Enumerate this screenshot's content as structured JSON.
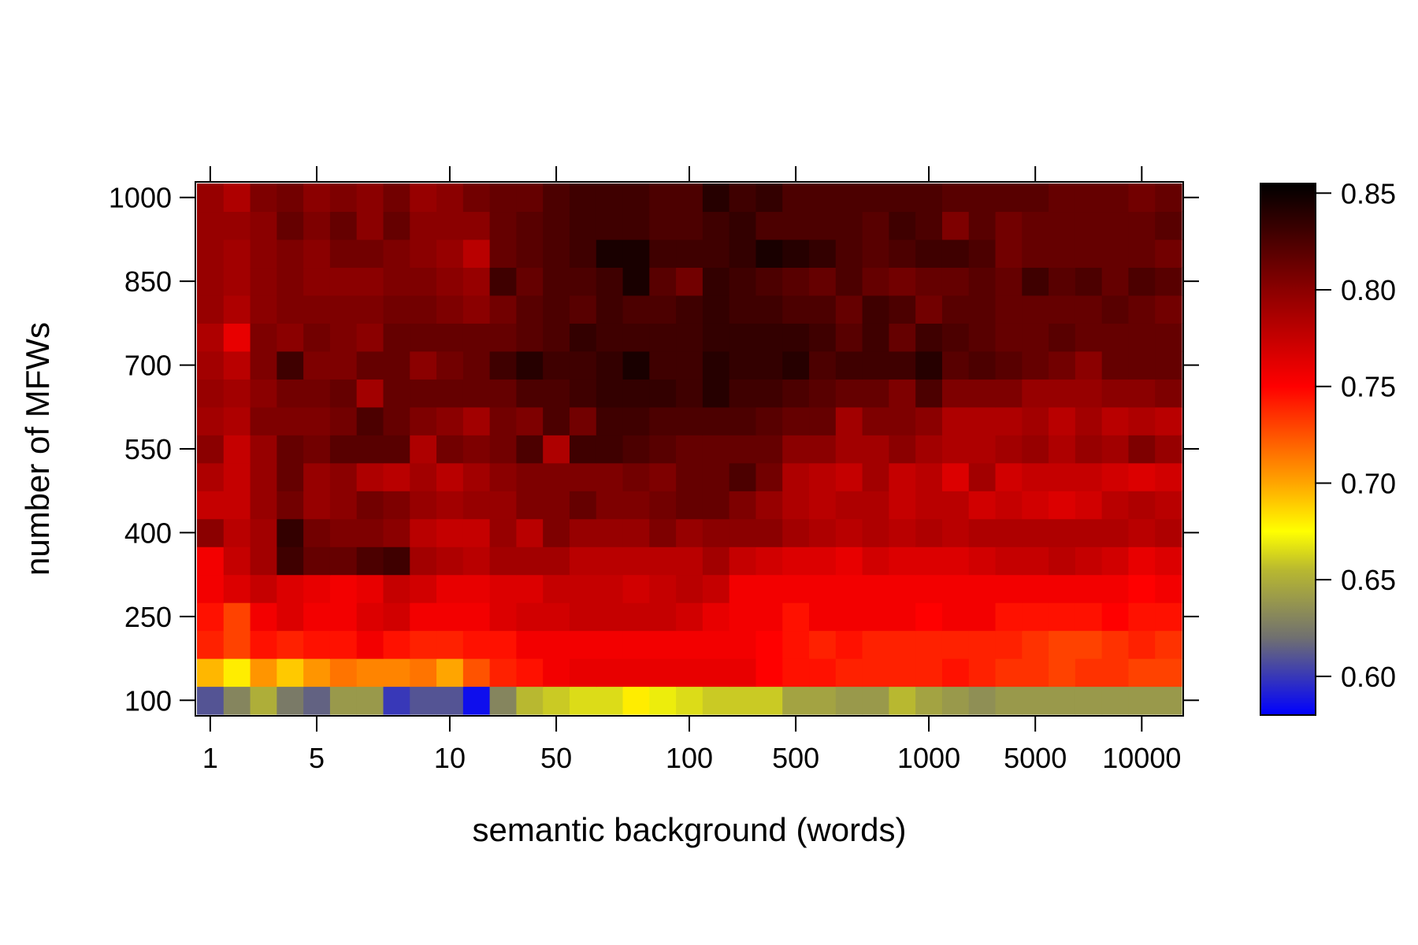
{
  "chart_data": {
    "type": "heatmap",
    "title": "",
    "xlabel": "semantic background (words)",
    "ylabel": "number of MFWs",
    "x_tick_labels": [
      "1",
      "5",
      "10",
      "50",
      "100",
      "500",
      "1000",
      "5000",
      "10000"
    ],
    "x_tick_col_index": [
      0,
      4,
      9,
      13,
      18,
      22,
      27,
      31,
      35
    ],
    "y_tick_labels": [
      "100",
      "250",
      "400",
      "550",
      "700",
      "850",
      "1000"
    ],
    "y_tick_row_index": [
      0,
      3,
      6,
      9,
      12,
      15,
      18
    ],
    "n_columns": 37,
    "n_rows": 19,
    "colorbar": {
      "range": [
        0.58,
        0.855
      ],
      "tick_labels": [
        "0.60",
        "0.65",
        "0.70",
        "0.75",
        "0.80",
        "0.85"
      ],
      "tick_values": [
        0.6,
        0.65,
        0.7,
        0.75,
        0.8,
        0.85
      ],
      "colors": [
        {
          "v": 0.58,
          "c": "#0000ff"
        },
        {
          "v": 0.62,
          "c": "#707070"
        },
        {
          "v": 0.655,
          "c": "#b8b830"
        },
        {
          "v": 0.675,
          "c": "#ffff00"
        },
        {
          "v": 0.7,
          "c": "#ffa500"
        },
        {
          "v": 0.75,
          "c": "#ff0000"
        },
        {
          "v": 0.8,
          "c": "#8b0000"
        },
        {
          "v": 0.855,
          "c": "#000000"
        }
      ]
    },
    "row_profiles": [
      {
        "row": 0,
        "mfw": "100",
        "values": [
          0.61,
          0.63,
          0.65,
          0.625,
          0.615,
          0.64,
          0.64,
          0.6,
          0.61,
          0.61,
          0.585,
          0.63,
          0.655,
          0.66,
          0.665,
          0.665,
          0.68,
          0.67,
          0.665,
          0.66,
          0.66,
          0.66,
          0.645,
          0.645,
          0.64,
          0.64,
          0.655,
          0.645,
          0.64,
          0.635,
          0.64,
          0.64,
          0.64,
          0.64,
          0.64,
          0.64,
          0.64
        ]
      },
      {
        "row": 1,
        "mfw": "150",
        "values": [
          0.695,
          0.68,
          0.705,
          0.69,
          0.705,
          0.715,
          0.71,
          0.71,
          0.715,
          0.7,
          0.725,
          0.74,
          0.745,
          0.755,
          0.76,
          0.76,
          0.76,
          0.76,
          0.76,
          0.76,
          0.76,
          0.75,
          0.745,
          0.745,
          0.74,
          0.74,
          0.74,
          0.74,
          0.745,
          0.74,
          0.735,
          0.735,
          0.73,
          0.735,
          0.735,
          0.73,
          0.73
        ]
      },
      {
        "row": 2,
        "mfw": "200",
        "values": [
          0.74,
          0.73,
          0.745,
          0.74,
          0.745,
          0.745,
          0.755,
          0.745,
          0.74,
          0.74,
          0.745,
          0.745,
          0.755,
          0.755,
          0.755,
          0.755,
          0.755,
          0.755,
          0.755,
          0.755,
          0.755,
          0.75,
          0.745,
          0.74,
          0.745,
          0.74,
          0.74,
          0.74,
          0.74,
          0.74,
          0.74,
          0.735,
          0.73,
          0.73,
          0.735,
          0.74,
          0.735
        ]
      },
      {
        "row": 3,
        "mfw": "250",
        "values": [
          0.745,
          0.73,
          0.755,
          0.765,
          0.755,
          0.755,
          0.765,
          0.77,
          0.755,
          0.755,
          0.755,
          0.765,
          0.77,
          0.77,
          0.775,
          0.775,
          0.775,
          0.775,
          0.77,
          0.76,
          0.755,
          0.755,
          0.745,
          0.755,
          0.755,
          0.755,
          0.755,
          0.75,
          0.755,
          0.755,
          0.745,
          0.745,
          0.745,
          0.745,
          0.75,
          0.745,
          0.745
        ]
      },
      {
        "row": 4,
        "mfw": "300",
        "values": [
          0.755,
          0.765,
          0.775,
          0.765,
          0.76,
          0.755,
          0.76,
          0.775,
          0.77,
          0.76,
          0.76,
          0.765,
          0.765,
          0.775,
          0.775,
          0.775,
          0.77,
          0.775,
          0.78,
          0.775,
          0.755,
          0.755,
          0.755,
          0.755,
          0.755,
          0.755,
          0.755,
          0.755,
          0.755,
          0.755,
          0.755,
          0.755,
          0.755,
          0.755,
          0.755,
          0.75,
          0.755
        ]
      },
      {
        "row": 5,
        "mfw": "350",
        "values": [
          0.755,
          0.775,
          0.79,
          0.83,
          0.815,
          0.815,
          0.825,
          0.83,
          0.79,
          0.785,
          0.78,
          0.79,
          0.79,
          0.79,
          0.78,
          0.78,
          0.78,
          0.78,
          0.78,
          0.79,
          0.775,
          0.77,
          0.765,
          0.765,
          0.76,
          0.77,
          0.765,
          0.765,
          0.765,
          0.77,
          0.775,
          0.775,
          0.78,
          0.775,
          0.77,
          0.76,
          0.765
        ]
      },
      {
        "row": 6,
        "mfw": "400",
        "values": [
          0.8,
          0.78,
          0.79,
          0.835,
          0.81,
          0.805,
          0.805,
          0.8,
          0.78,
          0.775,
          0.775,
          0.795,
          0.78,
          0.805,
          0.795,
          0.795,
          0.795,
          0.805,
          0.795,
          0.8,
          0.8,
          0.8,
          0.79,
          0.785,
          0.78,
          0.785,
          0.78,
          0.785,
          0.78,
          0.785,
          0.785,
          0.785,
          0.785,
          0.785,
          0.785,
          0.78,
          0.785
        ]
      },
      {
        "row": 7,
        "mfw": "450",
        "values": [
          0.775,
          0.775,
          0.795,
          0.81,
          0.795,
          0.8,
          0.81,
          0.805,
          0.795,
          0.79,
          0.795,
          0.795,
          0.805,
          0.805,
          0.815,
          0.805,
          0.805,
          0.81,
          0.815,
          0.815,
          0.805,
          0.795,
          0.785,
          0.78,
          0.785,
          0.785,
          0.775,
          0.78,
          0.78,
          0.77,
          0.775,
          0.77,
          0.765,
          0.77,
          0.78,
          0.785,
          0.78
        ]
      },
      {
        "row": 8,
        "mfw": "500",
        "values": [
          0.785,
          0.775,
          0.795,
          0.815,
          0.795,
          0.8,
          0.785,
          0.78,
          0.79,
          0.78,
          0.79,
          0.8,
          0.805,
          0.805,
          0.805,
          0.805,
          0.81,
          0.805,
          0.815,
          0.815,
          0.825,
          0.81,
          0.785,
          0.78,
          0.775,
          0.79,
          0.775,
          0.78,
          0.765,
          0.79,
          0.77,
          0.775,
          0.775,
          0.775,
          0.77,
          0.765,
          0.77
        ]
      },
      {
        "row": 9,
        "mfw": "550",
        "values": [
          0.8,
          0.775,
          0.795,
          0.815,
          0.81,
          0.82,
          0.82,
          0.82,
          0.785,
          0.81,
          0.805,
          0.81,
          0.825,
          0.785,
          0.83,
          0.83,
          0.825,
          0.82,
          0.815,
          0.815,
          0.815,
          0.815,
          0.8,
          0.8,
          0.79,
          0.79,
          0.8,
          0.79,
          0.785,
          0.785,
          0.79,
          0.795,
          0.785,
          0.795,
          0.79,
          0.805,
          0.795
        ]
      },
      {
        "row": 10,
        "mfw": "600",
        "values": [
          0.79,
          0.785,
          0.805,
          0.805,
          0.805,
          0.81,
          0.825,
          0.815,
          0.805,
          0.8,
          0.79,
          0.81,
          0.805,
          0.825,
          0.81,
          0.83,
          0.83,
          0.825,
          0.825,
          0.825,
          0.825,
          0.82,
          0.815,
          0.815,
          0.79,
          0.805,
          0.805,
          0.8,
          0.785,
          0.785,
          0.785,
          0.79,
          0.78,
          0.79,
          0.78,
          0.785,
          0.78
        ]
      },
      {
        "row": 11,
        "mfw": "650",
        "values": [
          0.795,
          0.79,
          0.8,
          0.81,
          0.81,
          0.815,
          0.79,
          0.815,
          0.815,
          0.815,
          0.815,
          0.815,
          0.825,
          0.825,
          0.83,
          0.835,
          0.835,
          0.835,
          0.83,
          0.84,
          0.83,
          0.83,
          0.825,
          0.82,
          0.815,
          0.815,
          0.805,
          0.825,
          0.805,
          0.805,
          0.805,
          0.795,
          0.795,
          0.795,
          0.8,
          0.8,
          0.805
        ]
      },
      {
        "row": 12,
        "mfw": "700",
        "values": [
          0.79,
          0.78,
          0.805,
          0.83,
          0.805,
          0.805,
          0.815,
          0.815,
          0.8,
          0.81,
          0.815,
          0.83,
          0.84,
          0.83,
          0.83,
          0.835,
          0.845,
          0.83,
          0.83,
          0.84,
          0.835,
          0.835,
          0.84,
          0.825,
          0.83,
          0.83,
          0.83,
          0.84,
          0.82,
          0.825,
          0.82,
          0.815,
          0.81,
          0.8,
          0.815,
          0.815,
          0.815
        ]
      },
      {
        "row": 13,
        "mfw": "750",
        "values": [
          0.785,
          0.76,
          0.805,
          0.8,
          0.81,
          0.805,
          0.8,
          0.815,
          0.815,
          0.815,
          0.815,
          0.815,
          0.82,
          0.825,
          0.835,
          0.83,
          0.83,
          0.83,
          0.83,
          0.835,
          0.835,
          0.835,
          0.835,
          0.83,
          0.82,
          0.83,
          0.815,
          0.83,
          0.825,
          0.82,
          0.815,
          0.815,
          0.82,
          0.815,
          0.815,
          0.815,
          0.815
        ]
      },
      {
        "row": 14,
        "mfw": "800",
        "values": [
          0.795,
          0.785,
          0.8,
          0.805,
          0.805,
          0.805,
          0.805,
          0.81,
          0.81,
          0.805,
          0.8,
          0.81,
          0.82,
          0.825,
          0.82,
          0.83,
          0.825,
          0.825,
          0.83,
          0.835,
          0.83,
          0.83,
          0.825,
          0.825,
          0.815,
          0.83,
          0.825,
          0.81,
          0.82,
          0.82,
          0.815,
          0.815,
          0.815,
          0.815,
          0.82,
          0.815,
          0.81
        ]
      },
      {
        "row": 15,
        "mfw": "850",
        "values": [
          0.795,
          0.79,
          0.8,
          0.805,
          0.8,
          0.8,
          0.8,
          0.805,
          0.805,
          0.8,
          0.795,
          0.83,
          0.815,
          0.825,
          0.825,
          0.83,
          0.845,
          0.82,
          0.81,
          0.835,
          0.83,
          0.825,
          0.82,
          0.815,
          0.825,
          0.815,
          0.81,
          0.815,
          0.815,
          0.82,
          0.815,
          0.83,
          0.82,
          0.825,
          0.815,
          0.825,
          0.82
        ]
      },
      {
        "row": 16,
        "mfw": "900",
        "values": [
          0.795,
          0.79,
          0.8,
          0.805,
          0.8,
          0.81,
          0.81,
          0.805,
          0.8,
          0.795,
          0.78,
          0.815,
          0.82,
          0.825,
          0.83,
          0.845,
          0.845,
          0.83,
          0.83,
          0.83,
          0.835,
          0.845,
          0.84,
          0.835,
          0.825,
          0.82,
          0.825,
          0.83,
          0.83,
          0.825,
          0.81,
          0.815,
          0.815,
          0.815,
          0.815,
          0.815,
          0.81
        ]
      },
      {
        "row": 17,
        "mfw": "950",
        "values": [
          0.795,
          0.795,
          0.8,
          0.815,
          0.805,
          0.815,
          0.8,
          0.815,
          0.8,
          0.8,
          0.8,
          0.815,
          0.82,
          0.825,
          0.83,
          0.83,
          0.83,
          0.825,
          0.825,
          0.83,
          0.835,
          0.825,
          0.825,
          0.825,
          0.825,
          0.82,
          0.83,
          0.825,
          0.805,
          0.82,
          0.81,
          0.815,
          0.815,
          0.815,
          0.815,
          0.815,
          0.82
        ]
      },
      {
        "row": 18,
        "mfw": "1000",
        "values": [
          0.795,
          0.785,
          0.805,
          0.81,
          0.8,
          0.805,
          0.8,
          0.81,
          0.795,
          0.8,
          0.81,
          0.815,
          0.815,
          0.825,
          0.83,
          0.83,
          0.83,
          0.825,
          0.825,
          0.84,
          0.83,
          0.835,
          0.825,
          0.825,
          0.825,
          0.825,
          0.825,
          0.825,
          0.82,
          0.82,
          0.82,
          0.82,
          0.815,
          0.815,
          0.815,
          0.81,
          0.815
        ]
      }
    ]
  }
}
